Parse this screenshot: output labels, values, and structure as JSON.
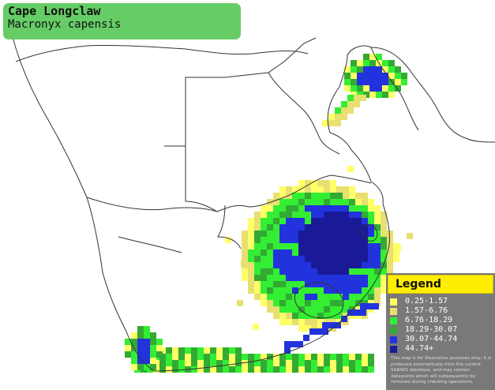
{
  "species": {
    "common_name": "Cape Longclaw",
    "scientific_name": "Macronyx capensis"
  },
  "legend": {
    "title": "Legend",
    "items": [
      {
        "label": "0.25-1.57",
        "color": "#ffff66"
      },
      {
        "label": "1.57-6.76",
        "color": "#e8e070"
      },
      {
        "label": "6.76-18.29",
        "color": "#33ee33"
      },
      {
        "label": "18.29-30.07",
        "color": "#33aa33"
      },
      {
        "label": "30.07-44.74",
        "color": "#2233dd"
      },
      {
        "label": "44.74+",
        "color": "#1a1a99"
      }
    ],
    "note": "This map is for illustrative purposes only; it is produced automatically from the current SABAP2 database, and may contain datapoints which will subsequently be removed during checking operations."
  },
  "colors": {
    "title_bg": "#66cc66",
    "legend_header": "#ffee00",
    "border": "#333333"
  }
}
